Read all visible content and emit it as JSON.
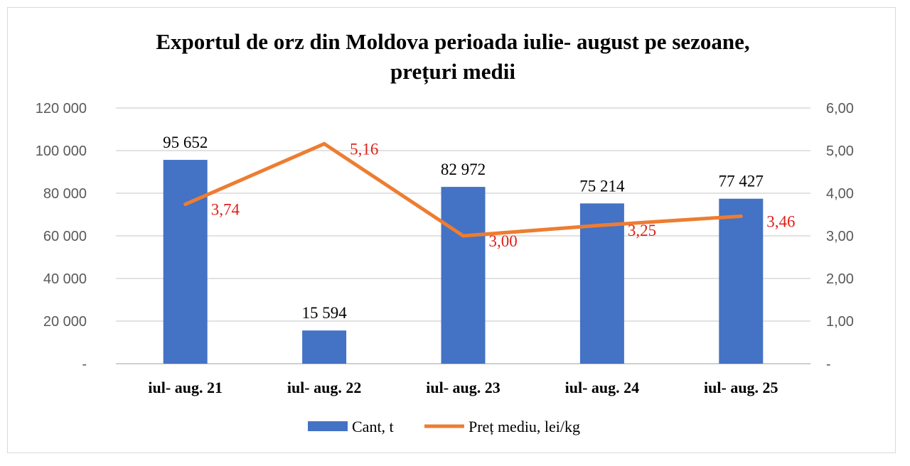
{
  "chart_data": {
    "type": "bar",
    "title_lines": [
      "Exportul de orz  din Moldova perioada iulie- august pe sezoane,",
      "prețuri medii"
    ],
    "categories": [
      "iul- aug. 21",
      "iul- aug. 22",
      "iul- aug. 23",
      "iul- aug. 24",
      "iul- aug. 25"
    ],
    "series": [
      {
        "name": "Cant, t",
        "type": "bar",
        "axis": "left",
        "color": "#4472c4",
        "values": [
          95652,
          15594,
          82972,
          75214,
          77427
        ],
        "labels": [
          "95 652",
          "15 594",
          "82 972",
          "75 214",
          "77 427"
        ]
      },
      {
        "name": "Preț mediu, lei/kg",
        "type": "line",
        "axis": "right",
        "color": "#ed7d31",
        "values": [
          3.74,
          5.16,
          3.0,
          3.25,
          3.46
        ],
        "labels": [
          "3,74",
          "5,16",
          "3,00",
          "3,25",
          "3,46"
        ]
      }
    ],
    "y_left": {
      "min": 0,
      "max": 120000,
      "ticks": [
        0,
        20000,
        40000,
        60000,
        80000,
        100000,
        120000
      ],
      "tick_labels": [
        "-",
        "20 000",
        "40 000",
        "60 000",
        "80 000",
        "100 000",
        "120 000"
      ]
    },
    "y_right": {
      "min": 0,
      "max": 6,
      "ticks": [
        0,
        1,
        2,
        3,
        4,
        5,
        6
      ],
      "tick_labels": [
        "-",
        "1,00",
        "2,00",
        "3,00",
        "4,00",
        "5,00",
        "6,00"
      ]
    },
    "grid": true,
    "legend": "bottom",
    "label_color": "#e0201a"
  }
}
